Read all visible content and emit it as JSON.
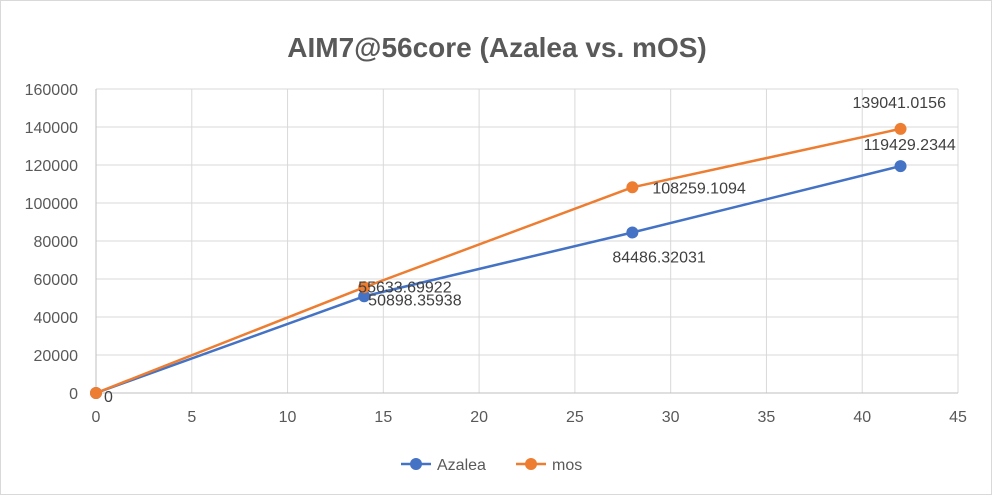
{
  "chart_data": {
    "type": "line",
    "title": "AIM7@56core (Azalea vs. mOS)",
    "xlabel": "",
    "ylabel": "",
    "xlim": [
      0,
      45
    ],
    "ylim": [
      0,
      160000
    ],
    "x_ticks": [
      "0",
      "5",
      "10",
      "15",
      "20",
      "25",
      "30",
      "35",
      "40",
      "45"
    ],
    "y_ticks": [
      "0",
      "20000",
      "40000",
      "60000",
      "80000",
      "100000",
      "120000",
      "140000",
      "160000"
    ],
    "grid": true,
    "legend_position": "bottom",
    "series": [
      {
        "name": "Azalea",
        "color": "#4472C4",
        "x": [
          0,
          14,
          28,
          42
        ],
        "y": [
          0,
          50898.35938,
          84486.32031,
          119429.2344
        ],
        "labels": [
          "0",
          "50898.35938",
          "84486.32031",
          "119429.2344"
        ]
      },
      {
        "name": "mos",
        "color": "#ED7D31",
        "x": [
          0,
          14,
          28,
          42
        ],
        "y": [
          0,
          55633.69922,
          108259.1094,
          139041.0156
        ],
        "labels": [
          "",
          "55633.69922",
          "108259.1094",
          "139041.0156"
        ]
      }
    ]
  }
}
